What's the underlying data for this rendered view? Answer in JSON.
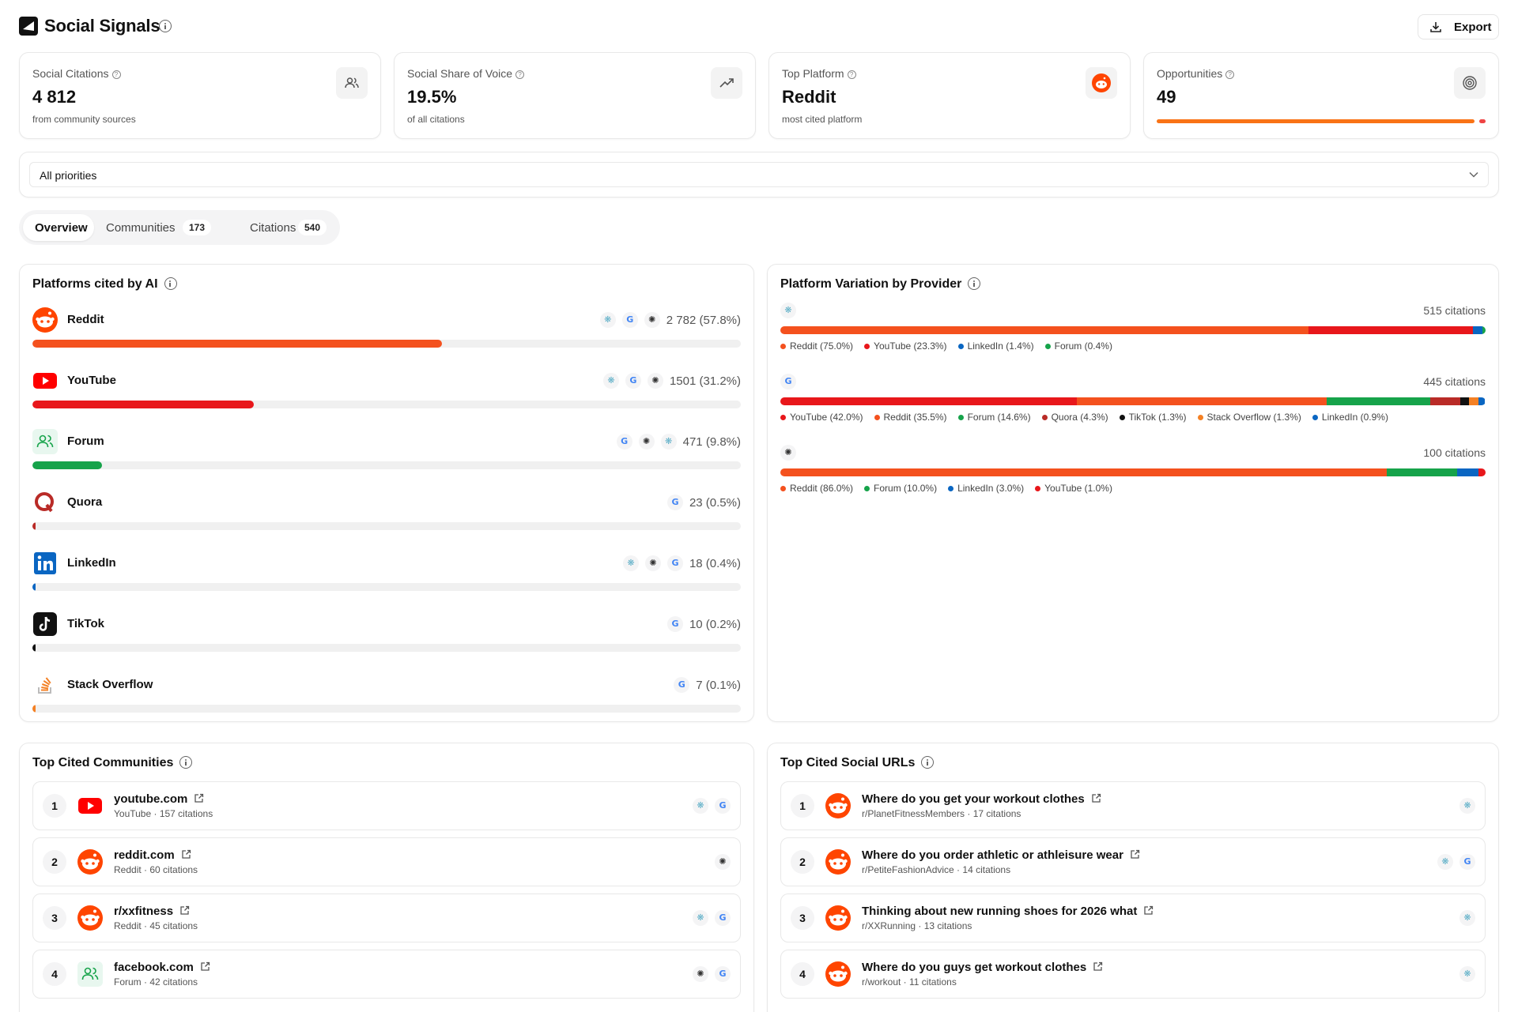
{
  "app": {
    "title": "Social Signals",
    "export_label": "Export"
  },
  "kpis": [
    {
      "label": "Social Citations",
      "value": "4 812",
      "sub": "from community sources",
      "icon": "users-icon"
    },
    {
      "label": "Social Share of Voice",
      "value": "19.5%",
      "sub": "of all citations",
      "icon": "trending-up-icon"
    },
    {
      "label": "Top Platform",
      "value": "Reddit",
      "sub": "most cited platform",
      "icon": "reddit-icon"
    },
    {
      "label": "Opportunities",
      "value": "49",
      "sub": "",
      "icon": "target-icon",
      "progress": 0.99
    }
  ],
  "filter": {
    "selected": "All priorities"
  },
  "tabs": [
    {
      "label": "Overview",
      "count": ""
    },
    {
      "label": "Communities",
      "count": "173"
    },
    {
      "label": "Citations",
      "count": "540"
    }
  ],
  "platforms_panel": {
    "title": "Platforms cited by AI",
    "rows": [
      {
        "name": "Reddit",
        "value": "2 782 (57.8%)",
        "share": 57.8,
        "color": "#f4511e",
        "providers": [
          "perplexity",
          "google",
          "openai"
        ]
      },
      {
        "name": "YouTube",
        "value": "1501 (31.2%)",
        "share": 31.2,
        "color": "#e8171b",
        "providers": [
          "perplexity",
          "google",
          "openai"
        ]
      },
      {
        "name": "Forum",
        "value": "471 (9.8%)",
        "share": 9.8,
        "color": "#16a34a",
        "providers": [
          "google",
          "openai",
          "perplexity"
        ]
      },
      {
        "name": "Quora",
        "value": "23 (0.5%)",
        "share": 0.5,
        "color": "#b92b27",
        "providers": [
          "google"
        ]
      },
      {
        "name": "LinkedIn",
        "value": "18 (0.4%)",
        "share": 0.4,
        "color": "#0a66c2",
        "providers": [
          "perplexity",
          "openai",
          "google"
        ]
      },
      {
        "name": "TikTok",
        "value": "10 (0.2%)",
        "share": 0.2,
        "color": "#111111",
        "providers": [
          "google"
        ]
      },
      {
        "name": "Stack Overflow",
        "value": "7 (0.1%)",
        "share": 0.1,
        "color": "#f48024",
        "providers": [
          "google"
        ]
      }
    ]
  },
  "variation_panel": {
    "title": "Platform Variation by Provider",
    "providers": [
      {
        "provider": "perplexity",
        "count": "515 citations",
        "segments": [
          {
            "label": "Reddit (75.0%)",
            "pct": 75.0,
            "color": "#f4511e"
          },
          {
            "label": "YouTube (23.3%)",
            "pct": 23.3,
            "color": "#e8171b"
          },
          {
            "label": "LinkedIn (1.4%)",
            "pct": 1.4,
            "color": "#0a66c2"
          },
          {
            "label": "Forum (0.4%)",
            "pct": 0.4,
            "color": "#16a34a"
          }
        ]
      },
      {
        "provider": "google",
        "count": "445 citations",
        "segments": [
          {
            "label": "YouTube (42.0%)",
            "pct": 42.0,
            "color": "#e8171b"
          },
          {
            "label": "Reddit (35.5%)",
            "pct": 35.5,
            "color": "#f4511e"
          },
          {
            "label": "Forum (14.6%)",
            "pct": 14.6,
            "color": "#16a34a"
          },
          {
            "label": "Quora (4.3%)",
            "pct": 4.3,
            "color": "#b92b27"
          },
          {
            "label": "TikTok (1.3%)",
            "pct": 1.3,
            "color": "#111111"
          },
          {
            "label": "Stack Overflow (1.3%)",
            "pct": 1.3,
            "color": "#f48024"
          },
          {
            "label": "LinkedIn (0.9%)",
            "pct": 0.9,
            "color": "#0a66c2"
          }
        ]
      },
      {
        "provider": "openai",
        "count": "100 citations",
        "segments": [
          {
            "label": "Reddit (86.0%)",
            "pct": 86.0,
            "color": "#f4511e"
          },
          {
            "label": "Forum (10.0%)",
            "pct": 10.0,
            "color": "#16a34a"
          },
          {
            "label": "LinkedIn (3.0%)",
            "pct": 3.0,
            "color": "#0a66c2"
          },
          {
            "label": "YouTube (1.0%)",
            "pct": 1.0,
            "color": "#e8171b"
          }
        ]
      }
    ]
  },
  "communities_panel": {
    "title": "Top Cited Communities",
    "items": [
      {
        "rank": "1",
        "title": "youtube.com",
        "sub": "YouTube · 157 citations",
        "logo": "youtube",
        "providers": [
          "perplexity",
          "google"
        ]
      },
      {
        "rank": "2",
        "title": "reddit.com",
        "sub": "Reddit · 60 citations",
        "logo": "reddit",
        "providers": [
          "openai"
        ]
      },
      {
        "rank": "3",
        "title": "r/xxfitness",
        "sub": "Reddit · 45 citations",
        "logo": "reddit",
        "providers": [
          "perplexity",
          "google"
        ]
      },
      {
        "rank": "4",
        "title": "facebook.com",
        "sub": "Forum · 42 citations",
        "logo": "forum",
        "providers": [
          "openai",
          "google"
        ]
      }
    ]
  },
  "urls_panel": {
    "title": "Top Cited Social URLs",
    "items": [
      {
        "rank": "1",
        "title": "Where do you get your workout clothes",
        "sub": "r/PlanetFitnessMembers · 17 citations",
        "logo": "reddit",
        "providers": [
          "perplexity"
        ]
      },
      {
        "rank": "2",
        "title": "Where do you order athletic or athleisure wear",
        "sub": "r/PetiteFashionAdvice · 14 citations",
        "logo": "reddit",
        "providers": [
          "perplexity",
          "google"
        ]
      },
      {
        "rank": "3",
        "title": "Thinking about new running shoes for 2026 what",
        "sub": "r/XXRunning · 13 citations",
        "logo": "reddit",
        "providers": [
          "perplexity"
        ]
      },
      {
        "rank": "4",
        "title": "Where do you guys get workout clothes",
        "sub": "r/workout · 11 citations",
        "logo": "reddit",
        "providers": [
          "perplexity"
        ]
      }
    ]
  }
}
